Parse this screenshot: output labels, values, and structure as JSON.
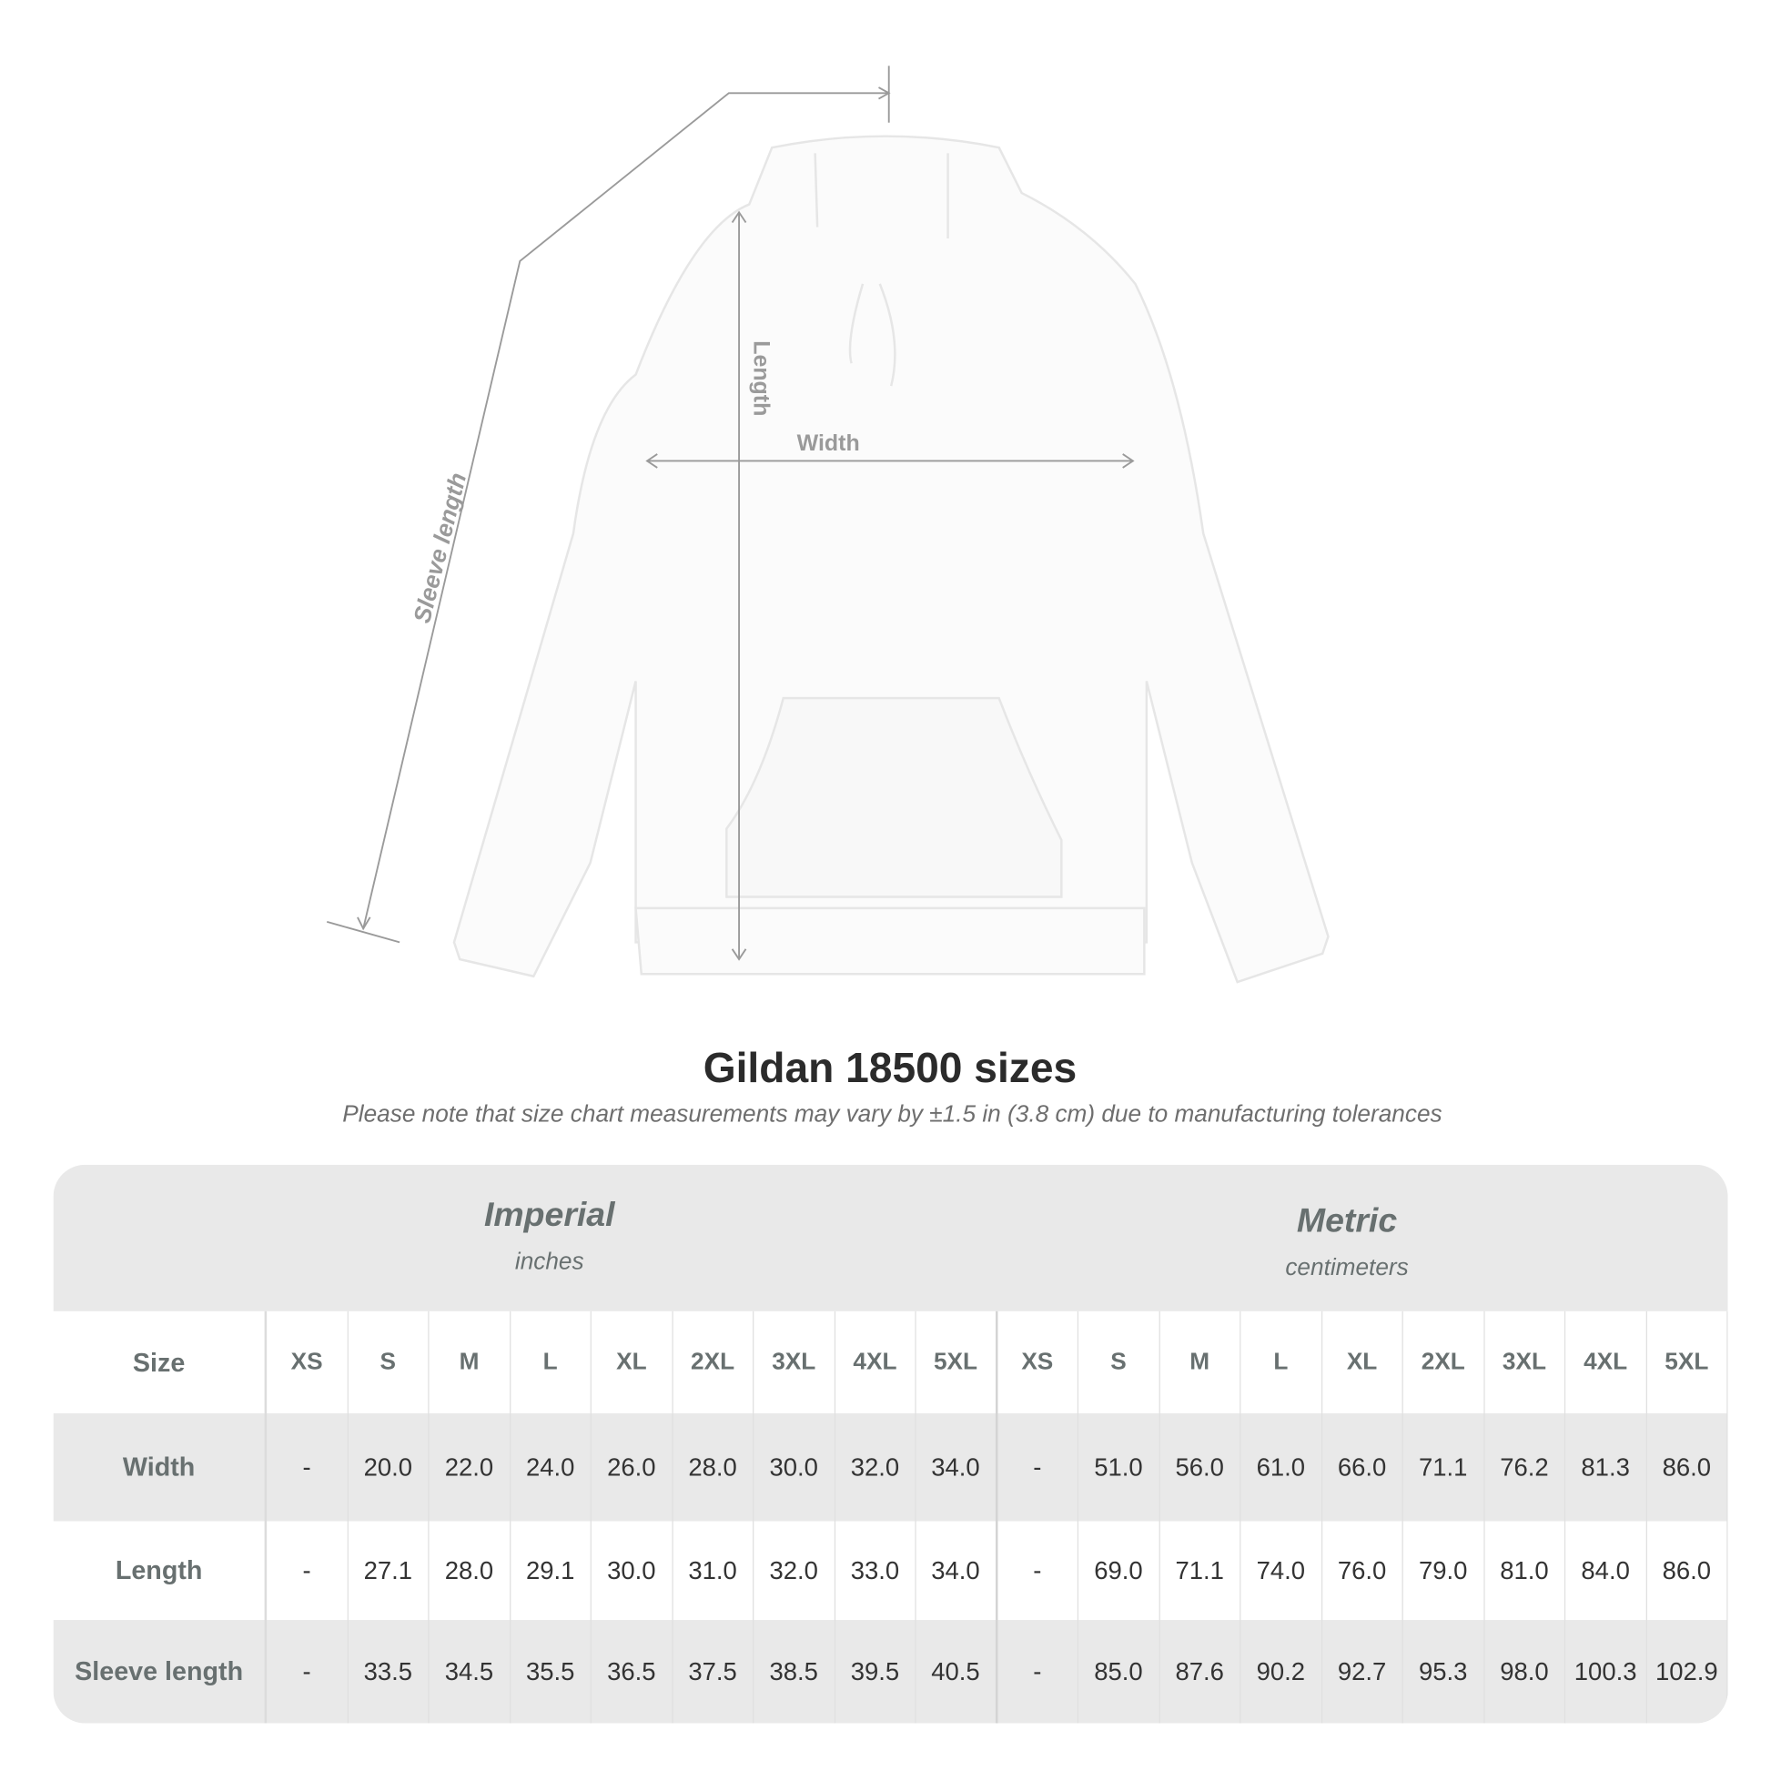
{
  "diagram_labels": {
    "sleeve": "Sleeve length",
    "length": "Length",
    "width": "Width"
  },
  "title": "Gildan 18500 sizes",
  "subtitle": "Please note that size chart measurements may vary by ±1.5 in (3.8 cm) due to manufacturing tolerances",
  "table": {
    "groups": [
      {
        "title": "Imperial",
        "unit": "inches"
      },
      {
        "title": "Metric",
        "unit": "centimeters"
      }
    ],
    "size_label": "Size",
    "sizes": [
      "XS",
      "S",
      "M",
      "L",
      "XL",
      "2XL",
      "3XL",
      "4XL",
      "5XL"
    ],
    "rows": [
      {
        "label": "Width",
        "imperial": [
          "-",
          "20.0",
          "22.0",
          "24.0",
          "26.0",
          "28.0",
          "30.0",
          "32.0",
          "34.0"
        ],
        "metric": [
          "-",
          "51.0",
          "56.0",
          "61.0",
          "66.0",
          "71.1",
          "76.2",
          "81.3",
          "86.0"
        ]
      },
      {
        "label": "Length",
        "imperial": [
          "-",
          "27.1",
          "28.0",
          "29.1",
          "30.0",
          "31.0",
          "32.0",
          "33.0",
          "34.0"
        ],
        "metric": [
          "-",
          "69.0",
          "71.1",
          "74.0",
          "76.0",
          "79.0",
          "81.0",
          "84.0",
          "86.0"
        ]
      },
      {
        "label": "Sleeve length",
        "imperial": [
          "-",
          "33.5",
          "34.5",
          "35.5",
          "36.5",
          "37.5",
          "38.5",
          "39.5",
          "40.5"
        ],
        "metric": [
          "-",
          "85.0",
          "87.6",
          "90.2",
          "92.7",
          "95.3",
          "98.0",
          "100.3",
          "102.9"
        ]
      }
    ]
  },
  "colors": {
    "band": "#e9e9e9",
    "header_text": "#687070",
    "value_text": "#333333",
    "measure_line": "#9a9a9a"
  }
}
